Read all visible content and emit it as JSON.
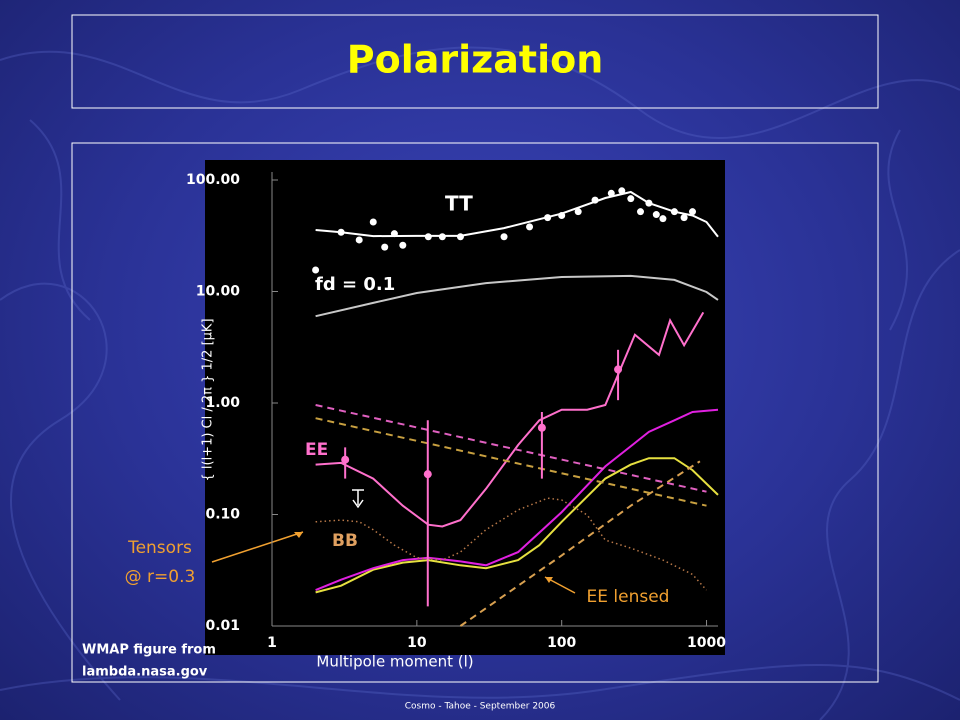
{
  "slide": {
    "title": "Polarization",
    "credit": [
      "WMAP figure from",
      "lambda.nasa.gov"
    ],
    "footer": "Cosmo - Tahoe - September 2006"
  },
  "chart_data": {
    "type": "line",
    "xlabel": "Multipole moment (l)",
    "ylabel": "{ l(l+1) Cl / 2π } 1/2  [μK]",
    "xscale": "log",
    "yscale": "log",
    "xlim": [
      1,
      1200
    ],
    "ylim": [
      0.01,
      100
    ],
    "xticks": [
      1,
      10,
      100,
      1000
    ],
    "yticks": [
      {
        "value": 0.01,
        "label": "0.01"
      },
      {
        "value": 0.1,
        "label": "0.10"
      },
      {
        "value": 1,
        "label": "1.00"
      },
      {
        "value": 10,
        "label": "10.00"
      },
      {
        "value": 100,
        "label": "100.00"
      }
    ],
    "series": [
      {
        "name": "TT",
        "color": "#ffffff",
        "x": [
          2,
          3,
          5,
          10,
          20,
          40,
          100,
          200,
          300,
          400,
          600,
          800,
          1000,
          1200
        ],
        "values": [
          35.6,
          34,
          31.4,
          31.5,
          31.5,
          37,
          50,
          69,
          78,
          62,
          52,
          48,
          42,
          31
        ]
      },
      {
        "name": "fd = 0.1",
        "color": "#c8c8c8",
        "x": [
          2,
          5,
          10,
          30,
          100,
          300,
          600,
          1000,
          1200
        ],
        "values": [
          6.0,
          7.9,
          9.7,
          11.9,
          13.5,
          13.8,
          12.7,
          9.9,
          8.4
        ]
      },
      {
        "name": "EE",
        "color": "#ff70cc",
        "x": [
          2,
          3,
          5,
          8,
          12,
          15,
          20,
          30,
          50,
          70,
          100,
          150,
          200,
          320,
          470,
          560,
          700,
          950
        ],
        "values": [
          0.28,
          0.29,
          0.21,
          0.12,
          0.081,
          0.078,
          0.089,
          0.17,
          0.42,
          0.7,
          0.87,
          0.87,
          0.96,
          4.1,
          2.7,
          5.5,
          3.3,
          6.5
        ]
      },
      {
        "name": "BB",
        "color": "#e6e040",
        "x": [
          2,
          3,
          5,
          8,
          12,
          20,
          30,
          50,
          70,
          100,
          200,
          300,
          400,
          600,
          800,
          1200
        ],
        "values": [
          0.02,
          0.023,
          0.032,
          0.037,
          0.039,
          0.035,
          0.033,
          0.039,
          0.053,
          0.086,
          0.21,
          0.28,
          0.32,
          0.32,
          0.25,
          0.15
        ]
      },
      {
        "color": "#e020e0",
        "x": [
          2,
          3,
          5,
          8,
          12,
          20,
          30,
          50,
          100,
          200,
          400,
          600,
          800,
          1200
        ],
        "values": [
          0.021,
          0.026,
          0.033,
          0.039,
          0.041,
          0.038,
          0.035,
          0.046,
          0.105,
          0.27,
          0.55,
          0.7,
          0.83,
          0.87
        ]
      },
      {
        "color": "#b87848",
        "dash": "dot",
        "x": [
          2,
          3,
          4,
          5,
          7,
          10,
          15,
          20,
          30,
          50,
          80,
          100,
          150,
          200,
          300,
          500,
          800,
          1000
        ],
        "values": [
          0.086,
          0.089,
          0.086,
          0.073,
          0.053,
          0.041,
          0.039,
          0.046,
          0.073,
          0.11,
          0.14,
          0.135,
          0.099,
          0.059,
          0.05,
          0.039,
          0.029,
          0.021
        ]
      },
      {
        "color": "#d8a050",
        "dash": "dash",
        "x": [
          20,
          100,
          300,
          900
        ],
        "values": [
          0.01,
          0.043,
          0.12,
          0.3
        ]
      },
      {
        "color": "#e060c0",
        "dash": "dash",
        "x": [
          2,
          1000
        ],
        "values": [
          0.96,
          0.16
        ]
      },
      {
        "color": "#c8a040",
        "dash": "dash",
        "x": [
          2,
          1000
        ],
        "values": [
          0.73,
          0.12
        ]
      }
    ],
    "points": [
      {
        "color": "#ffffff",
        "x": [
          2,
          3,
          4,
          5,
          6,
          7,
          8,
          12,
          15,
          20,
          40,
          60,
          80,
          100,
          130,
          170,
          220,
          260,
          300,
          350,
          400,
          450,
          500,
          600,
          700,
          800
        ],
        "values": [
          15.6,
          34,
          29,
          42,
          25,
          33,
          26,
          31,
          31,
          31,
          31,
          38,
          46,
          48,
          52,
          66,
          76,
          80,
          68,
          52,
          62,
          49,
          45,
          52,
          46,
          52
        ]
      },
      {
        "color": "#ff70cc",
        "x": [
          3.2,
          11.9,
          73,
          245
        ],
        "values": [
          0.31,
          0.23,
          0.6,
          2.0
        ],
        "lower": [
          0.21,
          0.015,
          0.21,
          1.06
        ],
        "upper": [
          0.4,
          0.7,
          0.83,
          3.0
        ]
      }
    ],
    "annotations": [
      "Tensors",
      "@ r=0.3",
      "EE lensed"
    ]
  }
}
